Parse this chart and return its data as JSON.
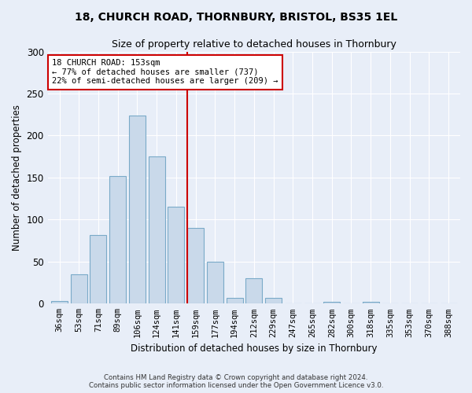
{
  "title": "18, CHURCH ROAD, THORNBURY, BRISTOL, BS35 1EL",
  "subtitle": "Size of property relative to detached houses in Thornbury",
  "xlabel": "Distribution of detached houses by size in Thornbury",
  "ylabel": "Number of detached properties",
  "categories": [
    "36sqm",
    "53sqm",
    "71sqm",
    "89sqm",
    "106sqm",
    "124sqm",
    "141sqm",
    "159sqm",
    "177sqm",
    "194sqm",
    "212sqm",
    "229sqm",
    "247sqm",
    "265sqm",
    "282sqm",
    "300sqm",
    "318sqm",
    "335sqm",
    "353sqm",
    "370sqm",
    "388sqm"
  ],
  "values": [
    3,
    35,
    82,
    152,
    224,
    175,
    115,
    90,
    50,
    7,
    30,
    7,
    0,
    0,
    2,
    0,
    2,
    0,
    0,
    0,
    0
  ],
  "bar_color": "#c9d9ea",
  "bar_edge_color": "#7aaac8",
  "vline_color": "#cc0000",
  "vline_pos": 6.56,
  "annotation_text": "18 CHURCH ROAD: 153sqm\n← 77% of detached houses are smaller (737)\n22% of semi-detached houses are larger (209) →",
  "annotation_box_color": "#ffffff",
  "annotation_box_edge_color": "#cc0000",
  "footer": "Contains HM Land Registry data © Crown copyright and database right 2024.\nContains public sector information licensed under the Open Government Licence v3.0.",
  "ylim": [
    0,
    300
  ],
  "yticks": [
    0,
    50,
    100,
    150,
    200,
    250,
    300
  ],
  "background_color": "#e8eef8",
  "plot_background": "#e8eef8"
}
